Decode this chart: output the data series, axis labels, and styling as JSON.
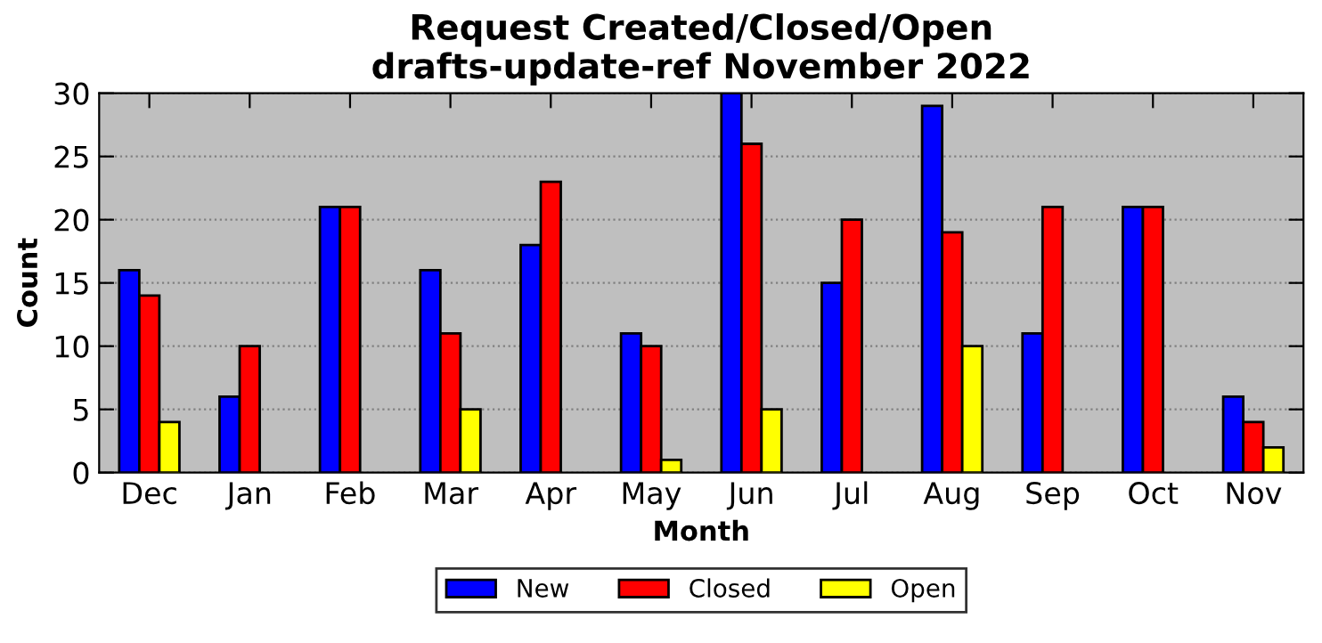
{
  "chart_data": {
    "type": "bar",
    "title": "Request Created/Closed/Open\ndrafts-update-ref November 2022",
    "xlabel": "Month",
    "ylabel": "Count",
    "categories": [
      "Dec",
      "Jan",
      "Feb",
      "Mar",
      "Apr",
      "May",
      "Jun",
      "Jul",
      "Aug",
      "Sep",
      "Oct",
      "Nov"
    ],
    "series": [
      {
        "name": "New",
        "color": "#0000ff",
        "values": [
          16,
          6,
          21,
          16,
          18,
          11,
          30,
          15,
          29,
          11,
          21,
          6
        ]
      },
      {
        "name": "Closed",
        "color": "#ff0000",
        "values": [
          14,
          10,
          21,
          11,
          23,
          10,
          26,
          20,
          19,
          21,
          21,
          4
        ]
      },
      {
        "name": "Open",
        "color": "#ffff00",
        "values": [
          4,
          0,
          0,
          5,
          0,
          1,
          5,
          0,
          10,
          0,
          0,
          2
        ]
      }
    ],
    "ylim": [
      0,
      30
    ],
    "yticks": [
      0,
      5,
      10,
      15,
      20,
      25,
      30
    ],
    "grid": "y",
    "legend": "bottom"
  }
}
